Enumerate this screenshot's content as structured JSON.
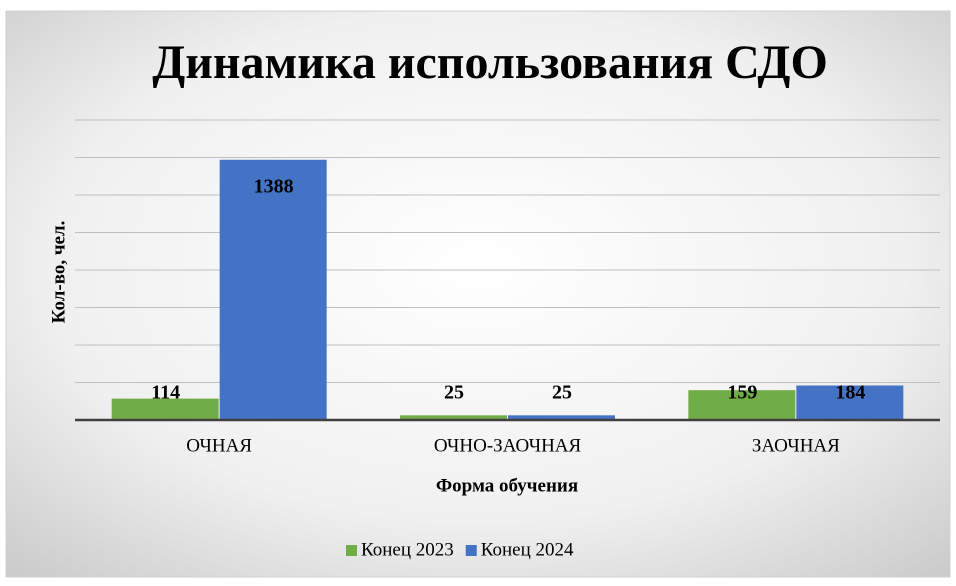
{
  "chart_data": {
    "type": "bar",
    "title": "Динамика использования СДО",
    "categories": [
      "ОЧНАЯ",
      "ОЧНО-ЗАОЧНАЯ",
      "ЗАОЧНАЯ"
    ],
    "series": [
      {
        "name": "Конец 2023",
        "color": "#70ad47",
        "values": [
          114,
          25,
          159
        ]
      },
      {
        "name": "Конец 2024",
        "color": "#4472c4",
        "values": [
          1388,
          25,
          184
        ]
      }
    ],
    "x_label": "Форма обучения",
    "y_label": "Кол-во, чел.",
    "ylim": [
      0,
      1600
    ],
    "yticks": [
      0,
      200,
      400,
      600,
      800,
      1000,
      1200,
      1400,
      1600
    ],
    "grid": true,
    "legend": "bottom"
  }
}
